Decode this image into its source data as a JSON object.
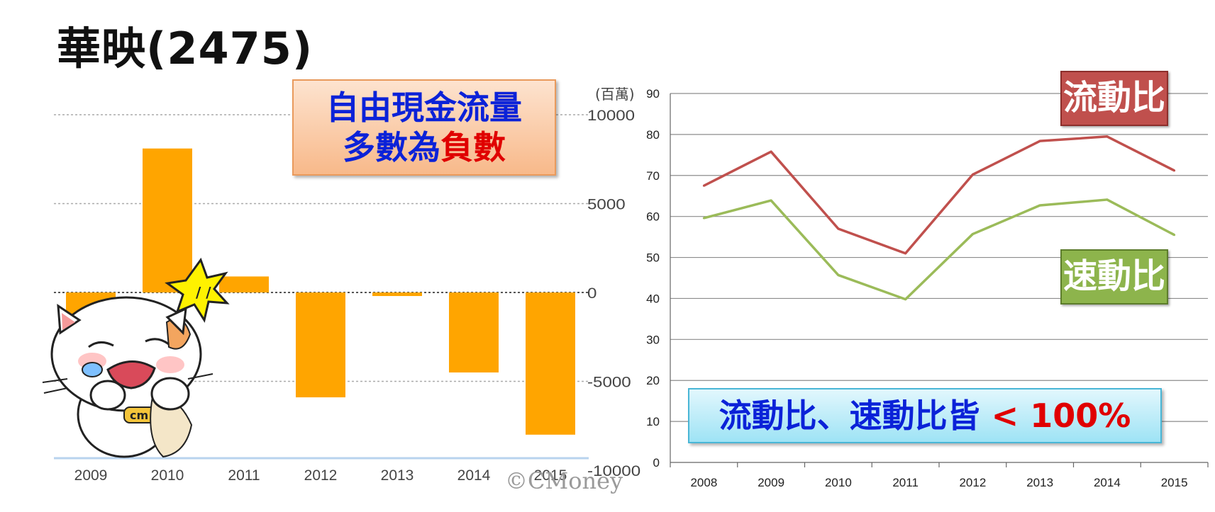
{
  "title": "華映(2475)",
  "callouts": {
    "fcf_line1": "自由現金流量",
    "fcf_line2_prefix": "多數為",
    "fcf_line2_emph": "負數",
    "current_ratio": "流動比",
    "quick_ratio": "速動比",
    "note_main": "流動比、速動比皆 ",
    "note_emph": "< 100%"
  },
  "watermark": "©CMoney",
  "colors": {
    "bar": "#ffa500",
    "current_line": "#c0504d",
    "quick_line": "#9bbb59",
    "title_blue": "#0b22d8",
    "emph_red": "#e00000"
  },
  "chart_data": [
    {
      "type": "bar",
      "unit": "(百萬)",
      "categories": [
        "2009",
        "2010",
        "2011",
        "2012",
        "2013",
        "2014",
        "2015"
      ],
      "values": [
        -1800,
        8100,
        900,
        -5900,
        -200,
        -4500,
        -8000
      ],
      "yticks": [
        10000,
        5000,
        0,
        -5000,
        -10000
      ],
      "ylim": [
        -10000,
        10000
      ],
      "grid": true
    },
    {
      "type": "line",
      "categories": [
        "2008",
        "2009",
        "2010",
        "2011",
        "2012",
        "2013",
        "2014",
        "2015"
      ],
      "series": [
        {
          "name": "流動比",
          "values": [
            67.5,
            75.8,
            57,
            51,
            70.2,
            78.4,
            79.5,
            71.2
          ]
        },
        {
          "name": "速動比",
          "values": [
            59.6,
            63.9,
            45.7,
            39.8,
            55.7,
            62.7,
            64.1,
            55.5
          ]
        }
      ],
      "yticks": [
        0,
        10,
        20,
        30,
        40,
        50,
        60,
        70,
        80,
        90
      ],
      "ylim": [
        0,
        90
      ],
      "grid": true
    }
  ]
}
